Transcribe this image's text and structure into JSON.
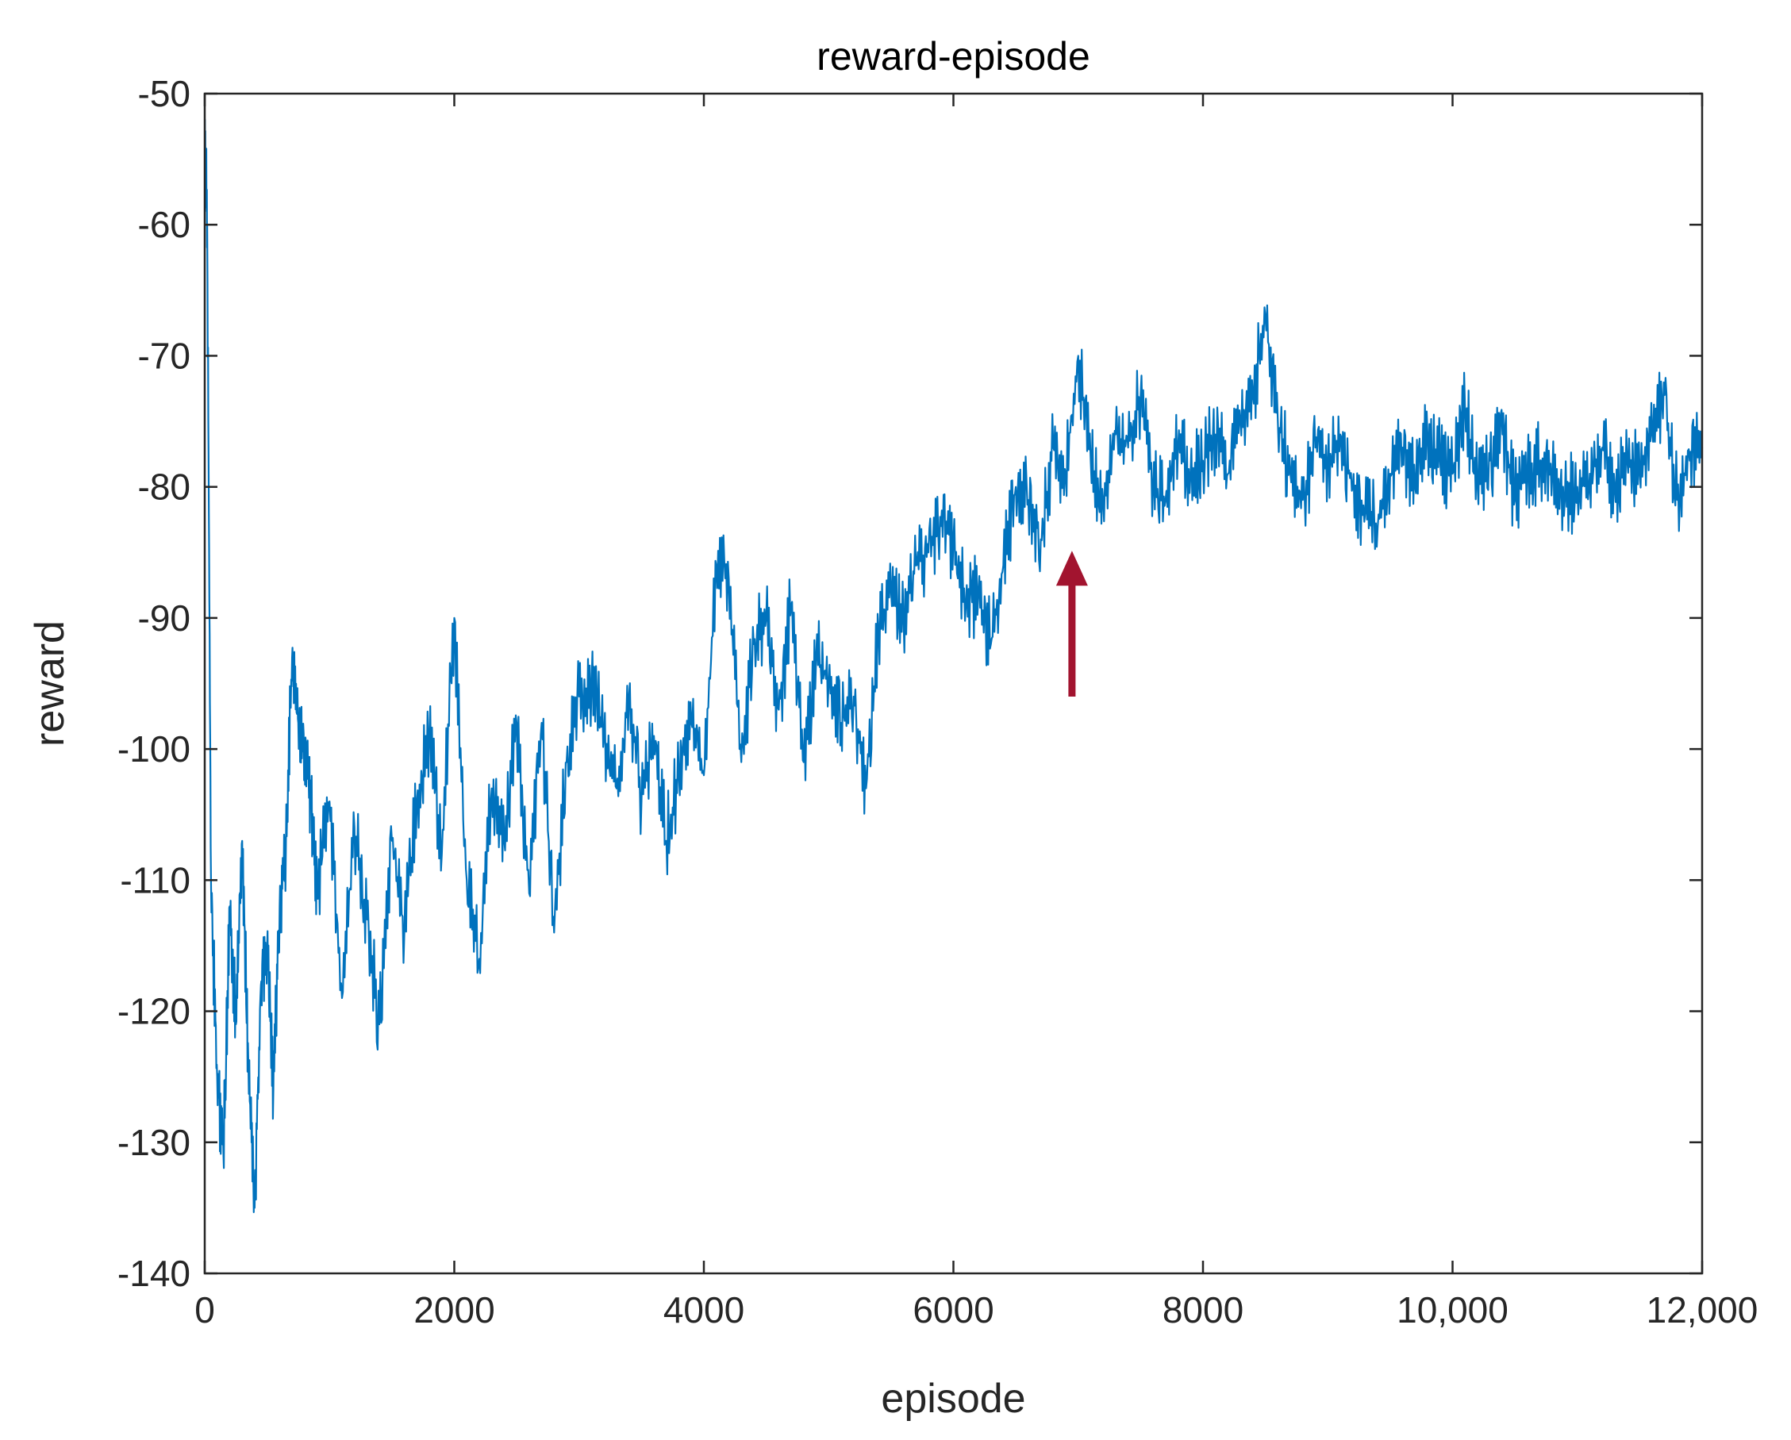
{
  "chart_data": {
    "type": "line",
    "title": "reward-episode",
    "xlabel": "episode",
    "ylabel": "reward",
    "xlim": [
      0,
      12000
    ],
    "ylim": [
      -140,
      -50
    ],
    "grid": false,
    "x_ticks": [
      0,
      2000,
      4000,
      6000,
      8000,
      10000,
      12000
    ],
    "x_tick_labels": [
      "0",
      "2000",
      "4000",
      "6000",
      "8000",
      "10,000",
      "12,000"
    ],
    "y_ticks": [
      -140,
      -130,
      -120,
      -110,
      -100,
      -90,
      -80,
      -70,
      -60,
      -50
    ],
    "y_tick_labels": [
      "-140",
      "-130",
      "-120",
      "-110",
      "-100",
      "-90",
      "-80",
      "-70",
      "-60",
      "-50"
    ],
    "colors": {
      "series": "#0072BD",
      "arrow": "#A2142F",
      "axes": "#262626"
    },
    "series": [
      {
        "color": "#0072BD",
        "x": [
          0,
          20,
          50,
          100,
          150,
          200,
          250,
          300,
          350,
          400,
          450,
          500,
          550,
          600,
          650,
          700,
          750,
          800,
          850,
          900,
          1000,
          1100,
          1200,
          1300,
          1400,
          1500,
          1600,
          1700,
          1800,
          1900,
          2000,
          2100,
          2200,
          2300,
          2400,
          2500,
          2600,
          2700,
          2800,
          2900,
          3000,
          3100,
          3200,
          3300,
          3400,
          3500,
          3600,
          3700,
          3800,
          3900,
          4000,
          4100,
          4200,
          4300,
          4400,
          4500,
          4600,
          4700,
          4800,
          4900,
          5000,
          5100,
          5200,
          5300,
          5400,
          5500,
          5600,
          5700,
          5800,
          5900,
          6000,
          6100,
          6200,
          6300,
          6400,
          6500,
          6600,
          6700,
          6800,
          6900,
          7000,
          7100,
          7200,
          7300,
          7400,
          7500,
          7600,
          7700,
          7800,
          7900,
          8000,
          8100,
          8200,
          8300,
          8400,
          8500,
          8600,
          8700,
          8800,
          8900,
          9000,
          9100,
          9200,
          9300,
          9400,
          9500,
          9600,
          9700,
          9800,
          9900,
          10000,
          10100,
          10200,
          10300,
          10400,
          10500,
          10600,
          10700,
          10800,
          10900,
          11000,
          11100,
          11200,
          11300,
          11400,
          11500,
          11600,
          11700,
          11800,
          11900,
          12000
        ],
        "y": [
          -52,
          -60,
          -110,
          -125,
          -131,
          -112,
          -121,
          -107,
          -124,
          -135,
          -118,
          -115,
          -126,
          -112,
          -108,
          -93,
          -98,
          -100,
          -104,
          -111,
          -104,
          -119,
          -106,
          -113,
          -121,
          -107,
          -114,
          -104,
          -99,
          -108,
          -90,
          -110,
          -116,
          -103,
          -107,
          -98,
          -111,
          -98,
          -114,
          -101,
          -96,
          -95,
          -99,
          -103,
          -96,
          -104,
          -99,
          -107,
          -102,
          -98,
          -102,
          -86,
          -87,
          -101,
          -92,
          -90,
          -97,
          -89,
          -101,
          -93,
          -95,
          -98,
          -96,
          -103,
          -91,
          -88,
          -90,
          -86,
          -85,
          -83,
          -84,
          -89,
          -88,
          -92,
          -86,
          -80,
          -81,
          -84,
          -77,
          -79,
          -70,
          -78,
          -81,
          -76,
          -77,
          -73,
          -80,
          -81,
          -77,
          -79,
          -78,
          -76,
          -79,
          -75,
          -73,
          -67,
          -75,
          -79,
          -81,
          -77,
          -78,
          -76,
          -80,
          -82,
          -83,
          -79,
          -77,
          -80,
          -76,
          -78,
          -79,
          -74,
          -80,
          -78,
          -76,
          -81,
          -79,
          -78,
          -79,
          -81,
          -80,
          -79,
          -77,
          -80,
          -78,
          -79,
          -76,
          -73,
          -81,
          -78,
          -77
        ]
      }
    ],
    "annotations": [
      {
        "type": "arrow",
        "color": "#A2142F",
        "x": 6950,
        "y_tail": -96,
        "y_head": -85
      }
    ]
  }
}
